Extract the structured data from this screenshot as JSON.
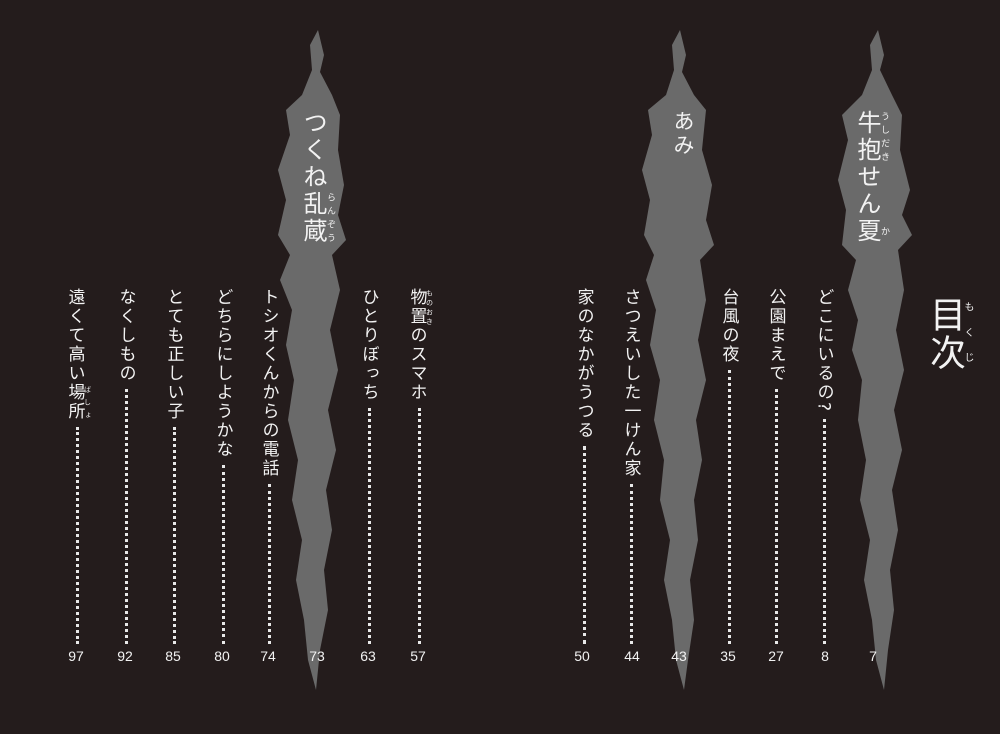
{
  "toc_heading": {
    "text": "目次",
    "ruby": "もくじ"
  },
  "colors": {
    "background": "#241c1c",
    "flame": "#6a6a6a",
    "text": "#f2f2f2"
  },
  "stories": [
    {
      "title_base": "牛抱",
      "title_ruby": "うしだき",
      "title_mid": "せん",
      "title_last": "夏",
      "title_last_ruby": "か",
      "page": "7",
      "entries": [
        {
          "title": "どこにいるの?",
          "page": "8"
        },
        {
          "title": "公園まえで",
          "page": "27"
        },
        {
          "title": "台風の夜",
          "page": "35"
        }
      ]
    },
    {
      "title": "あみ",
      "page": "43",
      "entries": [
        {
          "title": "さつえいした一けん家",
          "page": "44"
        },
        {
          "title": "家のなかがうつる",
          "page": "50"
        }
      ]
    },
    {
      "title_pre": "つくね",
      "title_base": "乱蔵",
      "title_ruby": "らんぞう",
      "page": "73",
      "entries": [
        {
          "title_base": "物置",
          "title_ruby": "ものおき",
          "title_rest": "のスマホ",
          "page": "57"
        },
        {
          "title": "ひとりぼっち",
          "page": "63"
        },
        {
          "title": "トシオくんからの電話",
          "page": "74"
        },
        {
          "title": "どちらにしようかな",
          "page": "80"
        },
        {
          "title": "とても正しい子",
          "page": "85"
        },
        {
          "title": "なくしもの",
          "page": "92"
        },
        {
          "title_pre": "遠くて高い",
          "title_base": "場所",
          "title_ruby": "ばしょ",
          "page": "97"
        }
      ]
    }
  ]
}
